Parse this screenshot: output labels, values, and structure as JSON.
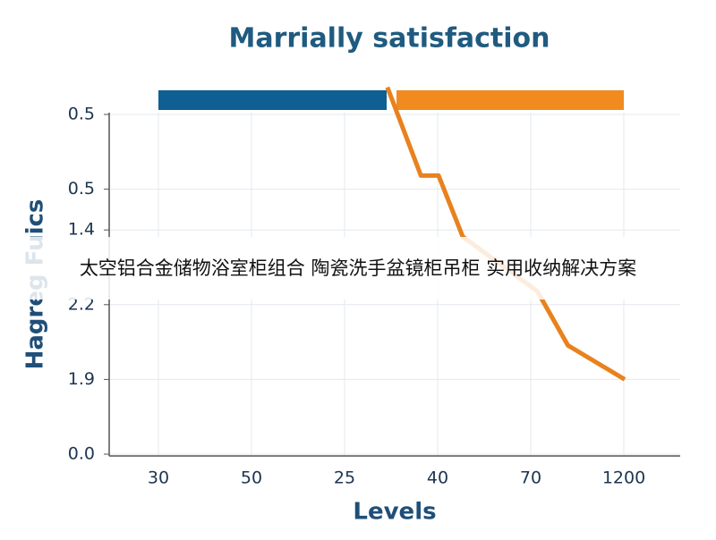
{
  "chart_data": {
    "type": "line",
    "title": "Marrially satisfaction",
    "xlabel": "Levels",
    "ylabel": "Hagreg Fuics",
    "xlim": [
      -0.53,
      5.6
    ],
    "xticks": [
      {
        "value": 0,
        "label": "30"
      },
      {
        "value": 1,
        "label": "50"
      },
      {
        "value": 2,
        "label": "25"
      },
      {
        "value": 3,
        "label": "40"
      },
      {
        "value": 4,
        "label": "70"
      },
      {
        "value": 5,
        "label": "1200"
      }
    ],
    "ylim": [
      0,
      5.5
    ],
    "yticks": [
      {
        "value": 0,
        "label": "0.0"
      },
      {
        "value": 1.1,
        "label": "1.9"
      },
      2.2,
      {
        "value": 3.3,
        "label": "1.4"
      },
      {
        "value": 3.9,
        "label": "0.5"
      },
      {
        "value": 5.0,
        "label": "0.5"
      }
    ],
    "grid": true,
    "series": [
      {
        "color": "#e8821e",
        "x": [
          2.46,
          2.82,
          3.01,
          3.27,
          4.07,
          4.4,
          5.01
        ],
        "values": [
          5.4,
          4.1,
          4.1,
          3.2,
          2.4,
          1.6,
          1.1
        ]
      }
    ]
  },
  "overlay_text": "太空铝合金储物浴室柜组合 陶瓷洗手盆镜柜吊柜 实用收纳解决方案"
}
